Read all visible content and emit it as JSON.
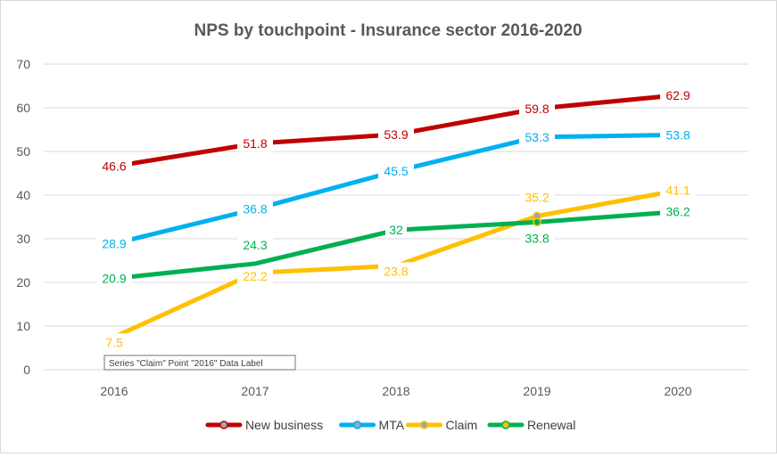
{
  "chart_data": {
    "type": "line",
    "title": "NPS by touchpoint - Insurance sector 2016-2020",
    "xlabel": "",
    "ylabel": "",
    "categories": [
      "2016",
      "2017",
      "2018",
      "2019",
      "2020"
    ],
    "ylim": [
      0,
      70
    ],
    "yticks": [
      "0",
      "10",
      "20",
      "30",
      "40",
      "50",
      "60",
      "70"
    ],
    "grid": true,
    "legend_position": "bottom",
    "series": [
      {
        "name": "New business",
        "color": "#c00000",
        "values": [
          46.6,
          51.8,
          53.9,
          59.8,
          62.9
        ],
        "labels": [
          "46.6",
          "51.8",
          "53.9",
          "59.8",
          "62.9"
        ]
      },
      {
        "name": "MTA",
        "color": "#00b0f0",
        "values": [
          28.9,
          36.8,
          45.5,
          53.3,
          53.8
        ],
        "labels": [
          "28.9",
          "36.8",
          "45.5",
          "53.3",
          "53.8"
        ]
      },
      {
        "name": "Claim",
        "color": "#ffc000",
        "values": [
          7.5,
          22.2,
          23.8,
          35.2,
          41.1
        ],
        "labels": [
          "7.5",
          "22.2",
          "23.8",
          "35.2",
          "41.1"
        ]
      },
      {
        "name": "Renewal",
        "color": "#00b050",
        "values": [
          20.9,
          24.3,
          32,
          33.8,
          36.2
        ],
        "labels": [
          "20.9",
          "24.3",
          "32",
          "33.8",
          "36.2"
        ]
      }
    ],
    "tooltip": "Series \"Claim\" Point \"2016\" Data Label"
  }
}
